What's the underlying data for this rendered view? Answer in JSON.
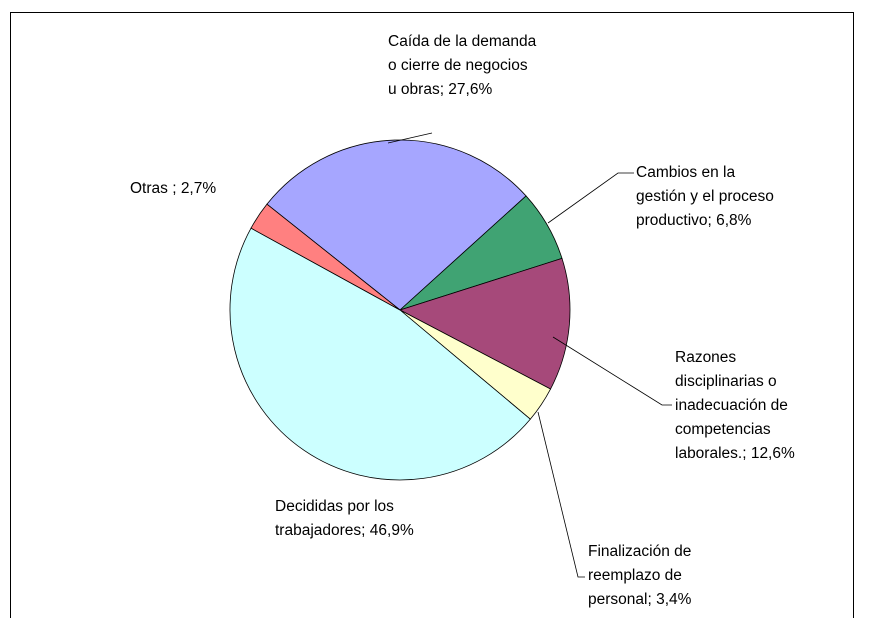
{
  "chart_data": {
    "type": "pie",
    "values": [
      27.6,
      6.8,
      12.6,
      3.4,
      46.9,
      2.7
    ],
    "value_labels": [
      "Caída de la demanda o cierre de negocios u obras; 27,6%",
      "Cambios en la gestión y el proceso productivo; 6,8%",
      "Razones disciplinarias o inadecuación de competencias laborales.; 12,6%",
      "Finalización de reemplazo de personal; 3,4%",
      "Decididas por los trabajadores; 46,9%",
      "Otras ; 2,7%"
    ],
    "colors": [
      "#a6a6ff",
      "#40a373",
      "#a6497a",
      "#ffffcc",
      "#ccffff",
      "#ff8080"
    ]
  }
}
